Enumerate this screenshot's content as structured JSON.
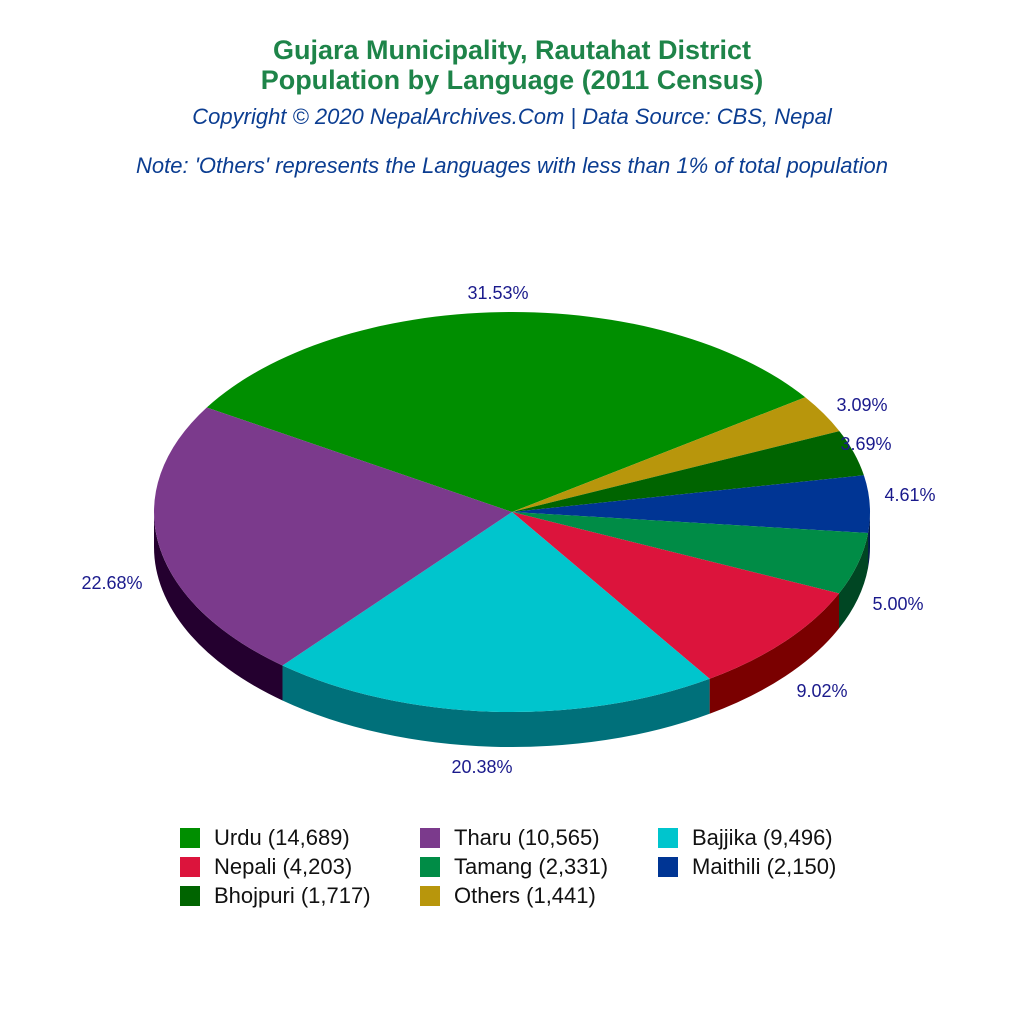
{
  "header": {
    "title_line1": "Gujara Municipality, Rautahat District",
    "title_line2": "Population by Language (2011 Census)",
    "copyright": "Copyright © 2020 NepalArchives.Com | Data Source: CBS, Nepal",
    "note": "Note: 'Others' represents the Languages with less than 1% of total population"
  },
  "colors": {
    "title": "#1e8449",
    "subtitle": "#0b3d91",
    "label": "#1a1a8c"
  },
  "chart_data": {
    "type": "pie",
    "title": "Gujara Municipality, Rautahat District Population by Language (2011 Census)",
    "subtitle": "Copyright © 2020 NepalArchives.Com | Data Source: CBS, Nepal",
    "annotation": "Note: 'Others' represents the Languages with less than 1% of total population",
    "legend_position": "bottom",
    "categories": [
      "Urdu",
      "Others",
      "Bhojpuri",
      "Maithili",
      "Tamang",
      "Nepali",
      "Bajjika",
      "Tharu"
    ],
    "values": [
      14689,
      1441,
      1717,
      2150,
      2331,
      4203,
      9496,
      10565
    ],
    "percentages": [
      31.53,
      3.09,
      3.69,
      4.61,
      5.0,
      9.02,
      20.38,
      22.68
    ],
    "labels": [
      "31.53%",
      "3.09%",
      "3.69%",
      "4.61%",
      "5.00%",
      "9.02%",
      "20.38%",
      "22.68%"
    ],
    "colors": [
      "#008e00",
      "#b8960c",
      "#006400",
      "#003594",
      "#008c46",
      "#dc143c",
      "#00c5cd",
      "#7b3a8c"
    ],
    "side_colors": [
      "#004700",
      "#5c4b06",
      "#003200",
      "#001a4a",
      "#004623",
      "#7a0000",
      "#00707a",
      "#24002f"
    ],
    "label_positions": [
      [
        498,
        294
      ],
      [
        862,
        406
      ],
      [
        866,
        445
      ],
      [
        910,
        496
      ],
      [
        898,
        605
      ],
      [
        822,
        692
      ],
      [
        482,
        768
      ],
      [
        112,
        584
      ]
    ]
  },
  "legend": {
    "items": [
      {
        "label": "Urdu (14,689)",
        "color": "#008e00"
      },
      {
        "label": "Tharu (10,565)",
        "color": "#7b3a8c"
      },
      {
        "label": "Bajjika (9,496)",
        "color": "#00c5cd"
      },
      {
        "label": "Nepali (4,203)",
        "color": "#dc143c"
      },
      {
        "label": "Tamang (2,331)",
        "color": "#008c46"
      },
      {
        "label": "Maithili (2,150)",
        "color": "#003594"
      },
      {
        "label": "Bhojpuri (1,717)",
        "color": "#006400"
      },
      {
        "label": "Others (1,441)",
        "color": "#b8960c"
      }
    ]
  }
}
